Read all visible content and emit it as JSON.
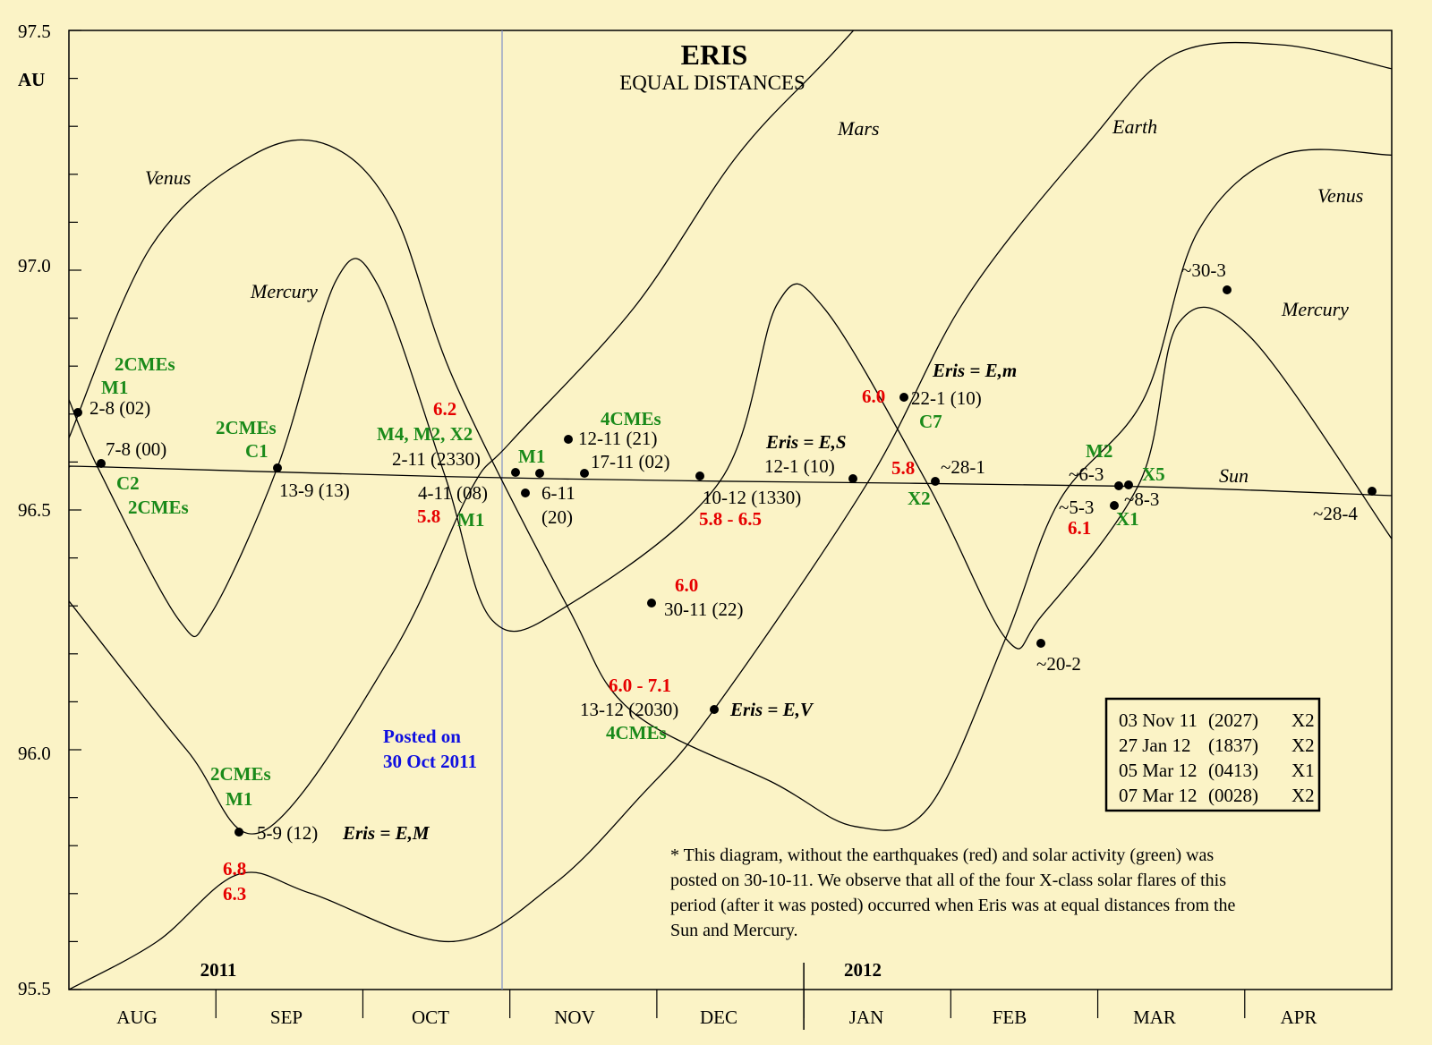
{
  "chart_data": {
    "type": "line",
    "title": "ERIS",
    "subtitle": "EQUAL DISTANCES",
    "ylabel": "AU",
    "ylim": [
      95.5,
      97.5
    ],
    "y_ticks": [
      "95.5",
      "96.0",
      "96.5",
      "97.0",
      "97.5"
    ],
    "x_categories": [
      "AUG",
      "SEP",
      "OCT",
      "NOV",
      "DEC",
      "JAN",
      "FEB",
      "MAR",
      "APR"
    ],
    "year_labels": [
      "2011",
      "2012"
    ],
    "series": [
      {
        "name": "Sun",
        "points": [
          [
            0,
            96.59
          ],
          [
            0.21,
            96.59
          ],
          [
            2.52,
            96.57
          ],
          [
            4.4,
            96.56
          ],
          [
            7.1,
            96.55
          ],
          [
            9.0,
            96.53
          ]
        ]
      },
      {
        "name": "Mercury",
        "points": [
          [
            0,
            96.73
          ],
          [
            0.21,
            96.58
          ],
          [
            0.75,
            96.27
          ],
          [
            0.96,
            96.28
          ],
          [
            1.42,
            96.59
          ],
          [
            1.82,
            96.98
          ],
          [
            2.1,
            96.97
          ],
          [
            2.56,
            96.57
          ],
          [
            2.88,
            96.27
          ],
          [
            3.39,
            96.3
          ],
          [
            4.43,
            96.56
          ],
          [
            4.82,
            96.93
          ],
          [
            5.14,
            96.92
          ],
          [
            5.85,
            96.55
          ],
          [
            6.38,
            96.23
          ],
          [
            6.62,
            96.28
          ],
          [
            7.29,
            96.56
          ],
          [
            7.55,
            96.89
          ],
          [
            8.04,
            96.86
          ],
          [
            9.0,
            96.44
          ]
        ]
      },
      {
        "name": "Venus",
        "points": [
          [
            0,
            96.65
          ],
          [
            0.56,
            97.05
          ],
          [
            1.25,
            97.24
          ],
          [
            1.77,
            97.26
          ],
          [
            2.21,
            97.12
          ],
          [
            2.62,
            96.77
          ],
          [
            3.39,
            96.3
          ],
          [
            3.83,
            96.08
          ],
          [
            4.8,
            95.93
          ],
          [
            5.35,
            95.84
          ],
          [
            5.85,
            95.88
          ],
          [
            6.37,
            96.23
          ],
          [
            6.74,
            96.52
          ],
          [
            7.31,
            96.73
          ],
          [
            7.68,
            97.08
          ],
          [
            8.25,
            97.24
          ],
          [
            9.0,
            97.24
          ]
        ]
      },
      {
        "name": "Mars",
        "points": [
          [
            0,
            96.31
          ],
          [
            0.8,
            96.0
          ],
          [
            1.32,
            95.83
          ],
          [
            2.2,
            96.2
          ],
          [
            2.73,
            96.54
          ],
          [
            3.0,
            96.64
          ],
          [
            3.84,
            96.92
          ],
          [
            4.55,
            97.24
          ],
          [
            5.22,
            97.46
          ],
          [
            6.07,
            97.75
          ]
        ]
      },
      {
        "name": "Earth",
        "points": [
          [
            0,
            95.5
          ],
          [
            0.6,
            95.6
          ],
          [
            1.15,
            95.74
          ],
          [
            1.65,
            95.7
          ],
          [
            2.6,
            95.6
          ],
          [
            3.3,
            95.72
          ],
          [
            3.88,
            95.9
          ],
          [
            4.38,
            96.08
          ],
          [
            5.44,
            96.56
          ],
          [
            6.1,
            96.94
          ],
          [
            6.95,
            97.27
          ],
          [
            7.52,
            97.45
          ],
          [
            8.25,
            97.47
          ],
          [
            9.0,
            97.42
          ]
        ]
      }
    ],
    "planet_labels": [
      "Venus",
      "Mercury",
      "Mars",
      "Earth",
      "Venus",
      "Mercury",
      "Sun"
    ],
    "intersections": [
      {
        "date": "2-8 (02)"
      },
      {
        "date": "7-8 (00)"
      },
      {
        "date": "13-9 (13)"
      },
      {
        "date": "5-9 (12)"
      },
      {
        "date": "2-11 (2330)"
      },
      {
        "date": "4-11 (08)"
      },
      {
        "date": "6-11"
      },
      {
        "date": "(20)"
      },
      {
        "date": "12-11 (21)"
      },
      {
        "date": "17-11 (02)"
      },
      {
        "date": "30-11 (22)"
      },
      {
        "date": "10-12 (1330)"
      },
      {
        "date": "13-12 (2030)"
      },
      {
        "date": "12-1 (10)"
      },
      {
        "date": "22-1 (10)"
      },
      {
        "date": "~28-1"
      },
      {
        "date": "~20-2"
      },
      {
        "date": "~6-3"
      },
      {
        "date": "~5-3"
      },
      {
        "date": "~8-3"
      },
      {
        "date": "~30-3"
      },
      {
        "date": "~28-4"
      }
    ],
    "earthquakes": [
      "6.8",
      "6.3",
      "6.2",
      "5.8",
      "6.0",
      "5.8 - 6.5",
      "6.0 - 7.1",
      "6.0",
      "5.8",
      "6.1"
    ],
    "solar_activity": [
      "2CMEs",
      "M1",
      "C2",
      "2CMEs",
      "2CMEs",
      "C1",
      "M4, M2, X2",
      "M1",
      "M1",
      "4CMEs",
      "4CMEs",
      "2CMEs",
      "M1",
      "C7",
      "X2",
      "M2",
      "X5",
      "X1"
    ],
    "eris_equalities": [
      "Eris = E,M",
      "Eris = E,S",
      "Eris = E,V",
      "Eris = E,m"
    ],
    "posted": [
      "Posted on",
      "30 Oct 2011"
    ],
    "x_flares": [
      {
        "date": "03 Nov 11",
        "time": "(2027)",
        "class": "X2"
      },
      {
        "date": "27 Jan 12",
        "time": "(1837)",
        "class": "X2"
      },
      {
        "date": "05 Mar 12",
        "time": "(0413)",
        "class": "X1"
      },
      {
        "date": "07 Mar 12",
        "time": "(0028)",
        "class": "X2"
      }
    ],
    "note_lines": [
      "* This diagram, without the earthquakes (red) and solar activity (green) was",
      "posted on 30-10-11. We observe that all of the four X-class solar flares of this",
      "period (after it was posted) occurred when Eris was at equal distances from the",
      "Sun and Mercury."
    ]
  }
}
